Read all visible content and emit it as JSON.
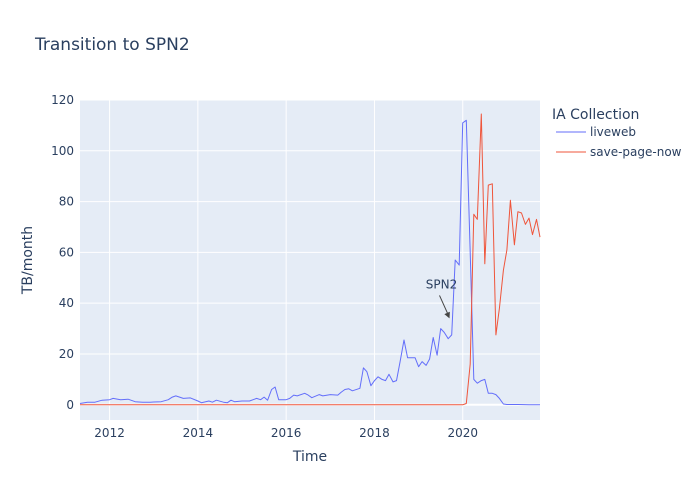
{
  "chart_data": {
    "type": "line",
    "title": "Transition to SPN2",
    "xlabel": "Time",
    "ylabel": "TB/month",
    "xlim": [
      2011.33,
      2021.75
    ],
    "ylim": [
      -6,
      120
    ],
    "x_ticks": [
      2012,
      2014,
      2016,
      2018,
      2020
    ],
    "y_ticks": [
      0,
      20,
      40,
      60,
      80,
      100,
      120
    ],
    "grid": true,
    "legend": {
      "title": "IA Collection",
      "placement": "right"
    },
    "annotation": {
      "text": "SPN2",
      "x": 2019.7,
      "y": 34
    },
    "series": [
      {
        "name": "liveweb",
        "color": "#636efa",
        "points": [
          [
            2011.33,
            0.5
          ],
          [
            2011.5,
            1.0
          ],
          [
            2011.67,
            1.0
          ],
          [
            2011.83,
            1.8
          ],
          [
            2012.0,
            2.0
          ],
          [
            2012.08,
            2.5
          ],
          [
            2012.25,
            2.0
          ],
          [
            2012.42,
            2.2
          ],
          [
            2012.58,
            1.2
          ],
          [
            2012.75,
            1.0
          ],
          [
            2012.92,
            1.0
          ],
          [
            2013.0,
            1.1
          ],
          [
            2013.17,
            1.2
          ],
          [
            2013.33,
            2.0
          ],
          [
            2013.42,
            3.0
          ],
          [
            2013.5,
            3.5
          ],
          [
            2013.67,
            2.5
          ],
          [
            2013.83,
            2.7
          ],
          [
            2014.0,
            1.5
          ],
          [
            2014.08,
            0.8
          ],
          [
            2014.25,
            1.5
          ],
          [
            2014.33,
            1.0
          ],
          [
            2014.42,
            1.8
          ],
          [
            2014.58,
            1.0
          ],
          [
            2014.67,
            0.8
          ],
          [
            2014.75,
            1.8
          ],
          [
            2014.83,
            1.2
          ],
          [
            2015.0,
            1.5
          ],
          [
            2015.17,
            1.5
          ],
          [
            2015.33,
            2.5
          ],
          [
            2015.42,
            2.0
          ],
          [
            2015.5,
            3.0
          ],
          [
            2015.58,
            1.8
          ],
          [
            2015.67,
            6.0
          ],
          [
            2015.75,
            7.0
          ],
          [
            2015.83,
            2.0
          ],
          [
            2016.0,
            2.0
          ],
          [
            2016.08,
            2.5
          ],
          [
            2016.17,
            3.8
          ],
          [
            2016.25,
            3.5
          ],
          [
            2016.42,
            4.5
          ],
          [
            2016.5,
            3.8
          ],
          [
            2016.58,
            2.8
          ],
          [
            2016.75,
            4.0
          ],
          [
            2016.83,
            3.5
          ],
          [
            2017.0,
            4.0
          ],
          [
            2017.17,
            3.8
          ],
          [
            2017.25,
            5.0
          ],
          [
            2017.33,
            6.0
          ],
          [
            2017.42,
            6.3
          ],
          [
            2017.5,
            5.5
          ],
          [
            2017.67,
            6.5
          ],
          [
            2017.75,
            14.5
          ],
          [
            2017.83,
            13.0
          ],
          [
            2017.92,
            7.5
          ],
          [
            2018.0,
            9.5
          ],
          [
            2018.08,
            11.0
          ],
          [
            2018.17,
            10.0
          ],
          [
            2018.25,
            9.5
          ],
          [
            2018.33,
            12.0
          ],
          [
            2018.42,
            9.0
          ],
          [
            2018.5,
            9.5
          ],
          [
            2018.58,
            17.0
          ],
          [
            2018.67,
            25.5
          ],
          [
            2018.75,
            18.5
          ],
          [
            2018.92,
            18.5
          ],
          [
            2019.0,
            15.0
          ],
          [
            2019.08,
            17.0
          ],
          [
            2019.17,
            15.5
          ],
          [
            2019.25,
            18.0
          ],
          [
            2019.33,
            26.5
          ],
          [
            2019.42,
            19.5
          ],
          [
            2019.5,
            30.0
          ],
          [
            2019.58,
            28.5
          ],
          [
            2019.67,
            26.0
          ],
          [
            2019.75,
            27.5
          ],
          [
            2019.83,
            57.0
          ],
          [
            2019.92,
            55.0
          ],
          [
            2020.0,
            111.0
          ],
          [
            2020.08,
            112.0
          ],
          [
            2020.17,
            60.0
          ],
          [
            2020.25,
            10.0
          ],
          [
            2020.33,
            8.5
          ],
          [
            2020.42,
            9.5
          ],
          [
            2020.5,
            10.0
          ],
          [
            2020.58,
            4.5
          ],
          [
            2020.67,
            4.5
          ],
          [
            2020.75,
            4.0
          ],
          [
            2020.83,
            2.5
          ],
          [
            2020.92,
            0.3
          ],
          [
            2021.0,
            0.1
          ],
          [
            2021.25,
            0.1
          ],
          [
            2021.5,
            0.0
          ],
          [
            2021.75,
            0.0
          ]
        ]
      },
      {
        "name": "save-page-now",
        "color": "#ef553b",
        "points": [
          [
            2011.33,
            0.0
          ],
          [
            2012.0,
            0.0
          ],
          [
            2013.0,
            0.0
          ],
          [
            2014.0,
            0.0
          ],
          [
            2015.0,
            0.0
          ],
          [
            2016.0,
            0.0
          ],
          [
            2017.0,
            0.0
          ],
          [
            2018.0,
            0.0
          ],
          [
            2019.0,
            0.0
          ],
          [
            2020.0,
            0.0
          ],
          [
            2020.08,
            0.5
          ],
          [
            2020.17,
            16.0
          ],
          [
            2020.25,
            75.0
          ],
          [
            2020.33,
            73.0
          ],
          [
            2020.42,
            114.5
          ],
          [
            2020.5,
            55.5
          ],
          [
            2020.58,
            86.5
          ],
          [
            2020.67,
            87.0
          ],
          [
            2020.75,
            27.5
          ],
          [
            2020.83,
            38.0
          ],
          [
            2020.92,
            53.0
          ],
          [
            2021.0,
            61.0
          ],
          [
            2021.08,
            80.5
          ],
          [
            2021.17,
            63.0
          ],
          [
            2021.25,
            76.0
          ],
          [
            2021.33,
            75.5
          ],
          [
            2021.42,
            71.0
          ],
          [
            2021.5,
            73.5
          ],
          [
            2021.58,
            67.0
          ],
          [
            2021.67,
            73.0
          ],
          [
            2021.75,
            66.0
          ]
        ]
      }
    ]
  }
}
